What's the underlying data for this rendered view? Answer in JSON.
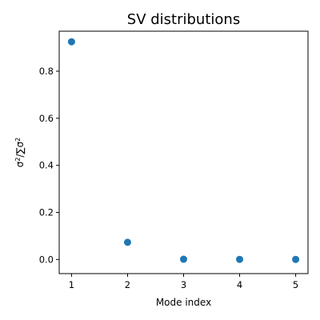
{
  "chart_data": {
    "type": "scatter",
    "title": "SV distributions",
    "xlabel": "Mode index",
    "ylabel": "σ²/∑σ²",
    "x": [
      1,
      2,
      3,
      4,
      5
    ],
    "y": [
      0.925,
      0.073,
      0.001,
      0.0005,
      0.0002
    ],
    "xlim": [
      0.78,
      5.22
    ],
    "ylim": [
      -0.06,
      0.97
    ],
    "xticks": [
      1,
      2,
      3,
      4,
      5
    ],
    "xtick_labels": [
      "1",
      "2",
      "3",
      "4",
      "5"
    ],
    "yticks": [
      0.0,
      0.2,
      0.4,
      0.6,
      0.8
    ],
    "ytick_labels": [
      "0.0",
      "0.2",
      "0.4",
      "0.6",
      "0.8"
    ],
    "grid": false,
    "marker_color": "#1f77b4"
  }
}
